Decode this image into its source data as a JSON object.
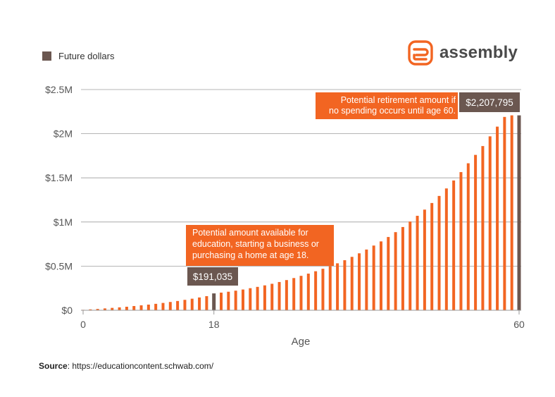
{
  "legend": {
    "label": "Future dollars",
    "color": "#6b5750"
  },
  "brand": {
    "name": "assembly",
    "logo_icon": "assembly-logo-icon",
    "color": "#f26522"
  },
  "source": {
    "label": "Source",
    "text": ": https://educationcontent.schwab.com/"
  },
  "colors": {
    "bar": "#f26522",
    "highlight": "#6b5750",
    "callout": "#f26522",
    "grid": "#9e9e9e"
  },
  "chart_data": {
    "type": "bar",
    "title": "",
    "xlabel": "Age",
    "ylabel": "",
    "x_range": [
      0,
      60
    ],
    "ylim": [
      0,
      2500000
    ],
    "y_ticks": [
      {
        "value": 0,
        "label": "$0"
      },
      {
        "value": 500000,
        "label": "$0.5M"
      },
      {
        "value": 1000000,
        "label": "$1M"
      },
      {
        "value": 1500000,
        "label": "$1.5M"
      },
      {
        "value": 2000000,
        "label": "$2M"
      },
      {
        "value": 2500000,
        "label": "$2.5M"
      }
    ],
    "x_ticks": [
      {
        "value": 0,
        "label": "0"
      },
      {
        "value": 18,
        "label": "18"
      },
      {
        "value": 60,
        "label": "60"
      }
    ],
    "series": [
      {
        "name": "Future dollars",
        "x": [
          0,
          1,
          2,
          3,
          4,
          5,
          6,
          7,
          8,
          9,
          10,
          11,
          12,
          13,
          14,
          15,
          16,
          17,
          18,
          19,
          20,
          21,
          22,
          23,
          24,
          25,
          26,
          27,
          28,
          29,
          30,
          31,
          32,
          33,
          34,
          35,
          36,
          37,
          38,
          39,
          40,
          41,
          42,
          43,
          44,
          45,
          46,
          47,
          48,
          49,
          50,
          51,
          52,
          53,
          54,
          55,
          56,
          57,
          58,
          59,
          60
        ],
        "values": [
          5000,
          10000,
          15000,
          21000,
          27000,
          33000,
          40000,
          48000,
          56000,
          64000,
          73000,
          83000,
          94000,
          105000,
          118000,
          131000,
          145000,
          160000,
          191035,
          200000,
          210000,
          222000,
          235000,
          250000,
          265000,
          282000,
          300000,
          320000,
          342000,
          365000,
          390000,
          415000,
          442000,
          470000,
          500000,
          532000,
          567000,
          605000,
          645000,
          688000,
          733000,
          780000,
          830000,
          885000,
          943000,
          1005000,
          1070000,
          1140000,
          1215000,
          1295000,
          1380000,
          1470000,
          1565000,
          1665000,
          1760000,
          1860000,
          1970000,
          2080000,
          2190000,
          2207795,
          2207795
        ],
        "highlight_ages": [
          18,
          60
        ]
      }
    ],
    "annotations": [
      {
        "id": "age18",
        "age": 18,
        "value_label": "$191,035",
        "text_lines": [
          "Potential amount available for",
          "education, starting a business or",
          "purchasing a home at age 18."
        ]
      },
      {
        "id": "age60",
        "age": 60,
        "value_label": "$2,207,795",
        "text_lines": [
          "Potential retirement amount if",
          "no spending occurs until age 60."
        ]
      }
    ]
  }
}
